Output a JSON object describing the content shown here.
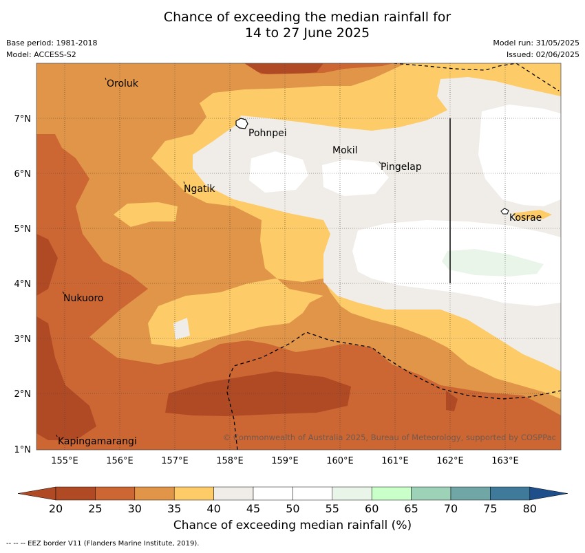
{
  "title": {
    "line1": "Chance of exceeding the median rainfall for",
    "line2": "14 to 27 June 2025"
  },
  "meta_left": {
    "base_period": "Base period: 1981-2018",
    "model": "Model: ACCESS-S2"
  },
  "meta_right": {
    "model_run": "Model run: 31/05/2025",
    "issued": "Issued: 02/06/2025"
  },
  "map": {
    "lon_ticks": [
      "155°E",
      "156°E",
      "157°E",
      "158°E",
      "159°E",
      "160°E",
      "161°E",
      "162°E",
      "163°E"
    ],
    "lat_ticks": [
      "7°N",
      "6°N",
      "5°N",
      "4°N",
      "3°N",
      "2°N",
      "1°N"
    ],
    "places": [
      "Oroluk",
      "Pohnpei",
      "Mokil",
      "Pingelap",
      "Ngatik",
      "Kosrae",
      "Nukuoro",
      "Kapingamarangi"
    ],
    "copyright": "© Commonwealth of Australia 2025, Bureau of Meteorology, supported by COSPPac"
  },
  "colorbar": {
    "tick_labels": [
      "20",
      "25",
      "30",
      "35",
      "40",
      "45",
      "50",
      "55",
      "60",
      "65",
      "70",
      "75",
      "80"
    ],
    "colors": [
      "#b04a25",
      "#cc6633",
      "#e09548",
      "#fdcc68",
      "#f0ede8",
      "#ffffff",
      "#ffffff",
      "#e8f5e8",
      "#c9ffc9",
      "#9dd2b8",
      "#70a6a6",
      "#407a9a",
      "#1f4f8a"
    ],
    "title": "Chance of exceeding median rainfall (%)"
  },
  "footnote": "--  --  -- EEZ border V11 (Flanders Marine Institute, 2019)."
}
